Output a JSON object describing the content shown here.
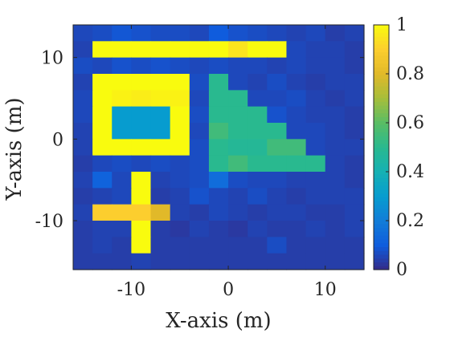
{
  "chart_data": {
    "type": "heatmap",
    "title": "",
    "xlabel": "X-axis (m)",
    "ylabel": "Y-axis (m)",
    "xlim": [
      -16,
      14
    ],
    "ylim": [
      -16,
      14
    ],
    "xticks": [
      -10,
      0,
      10
    ],
    "yticks": [
      10,
      0,
      -10
    ],
    "x_tick_labels": [
      "-10",
      "0",
      "10"
    ],
    "y_tick_labels": [
      "10",
      "0",
      "-10"
    ],
    "cell_size": 2,
    "x_centers": [
      -15,
      -13,
      -11,
      -9,
      -7,
      -5,
      -3,
      -1,
      1,
      3,
      5,
      7,
      9,
      11,
      13
    ],
    "y_centers": [
      13,
      11,
      9,
      7,
      5,
      3,
      1,
      -1,
      -3,
      -5,
      -7,
      -9,
      -11,
      -13,
      -15
    ],
    "values": [
      [
        0.06,
        0.07,
        0.09,
        0.08,
        0.07,
        0.07,
        0.06,
        0.1,
        0.08,
        0.07,
        0.06,
        0.05,
        0.06,
        0.04,
        0.05
      ],
      [
        0.05,
        1.0,
        1.0,
        1.0,
        1.0,
        1.0,
        1.0,
        1.0,
        0.95,
        1.0,
        1.0,
        0.06,
        0.05,
        0.05,
        0.04
      ],
      [
        0.07,
        0.06,
        0.08,
        0.07,
        0.08,
        0.07,
        0.06,
        0.07,
        0.06,
        0.06,
        0.05,
        0.06,
        0.05,
        0.05,
        0.04
      ],
      [
        0.05,
        1.0,
        1.0,
        1.0,
        1.0,
        1.0,
        0.07,
        0.5,
        0.06,
        0.05,
        0.07,
        0.05,
        0.04,
        0.05,
        0.05
      ],
      [
        0.06,
        1.0,
        0.98,
        0.97,
        0.98,
        0.98,
        0.06,
        0.5,
        0.5,
        0.06,
        0.06,
        0.07,
        0.05,
        0.04,
        0.05
      ],
      [
        0.06,
        1.0,
        0.3,
        0.3,
        0.3,
        1.0,
        0.07,
        0.5,
        0.5,
        0.5,
        0.08,
        0.06,
        0.05,
        0.05,
        0.04
      ],
      [
        0.05,
        1.0,
        0.3,
        0.3,
        0.3,
        1.0,
        0.06,
        0.55,
        0.5,
        0.5,
        0.5,
        0.06,
        0.06,
        0.05,
        0.04
      ],
      [
        0.05,
        1.0,
        1.0,
        1.0,
        1.0,
        1.0,
        0.07,
        0.5,
        0.48,
        0.48,
        0.55,
        0.55,
        0.06,
        0.05,
        0.05
      ],
      [
        0.04,
        0.06,
        0.07,
        0.06,
        0.07,
        0.06,
        0.07,
        0.5,
        0.55,
        0.5,
        0.5,
        0.5,
        0.5,
        0.05,
        0.04
      ],
      [
        0.05,
        0.12,
        0.06,
        1.0,
        0.05,
        0.06,
        0.07,
        0.15,
        0.07,
        0.06,
        0.06,
        0.05,
        0.05,
        0.05,
        0.04
      ],
      [
        0.04,
        0.05,
        0.06,
        1.0,
        0.04,
        0.05,
        0.08,
        0.06,
        0.05,
        0.07,
        0.05,
        0.04,
        0.05,
        0.05,
        0.05
      ],
      [
        0.05,
        0.9,
        0.9,
        0.9,
        0.8,
        0.05,
        0.04,
        0.06,
        0.05,
        0.04,
        0.05,
        0.05,
        0.04,
        0.04,
        0.05
      ],
      [
        0.04,
        0.05,
        0.05,
        1.0,
        0.04,
        0.03,
        0.05,
        0.04,
        0.03,
        0.05,
        0.04,
        0.04,
        0.05,
        0.04,
        0.05
      ],
      [
        0.04,
        0.05,
        0.04,
        1.0,
        0.04,
        0.04,
        0.04,
        0.04,
        0.04,
        0.04,
        0.07,
        0.04,
        0.04,
        0.04,
        0.04
      ],
      [
        0.04,
        0.04,
        0.04,
        0.05,
        0.04,
        0.04,
        0.04,
        0.04,
        0.04,
        0.04,
        0.04,
        0.04,
        0.04,
        0.04,
        0.04
      ]
    ],
    "colorbar": {
      "range": [
        0,
        1
      ],
      "ticks": [
        0,
        0.2,
        0.4,
        0.6,
        0.8,
        1
      ],
      "tick_labels": [
        "0",
        "0.2",
        "0.4",
        "0.6",
        "0.8",
        "1"
      ]
    },
    "colormap": "parula",
    "grid": false
  }
}
